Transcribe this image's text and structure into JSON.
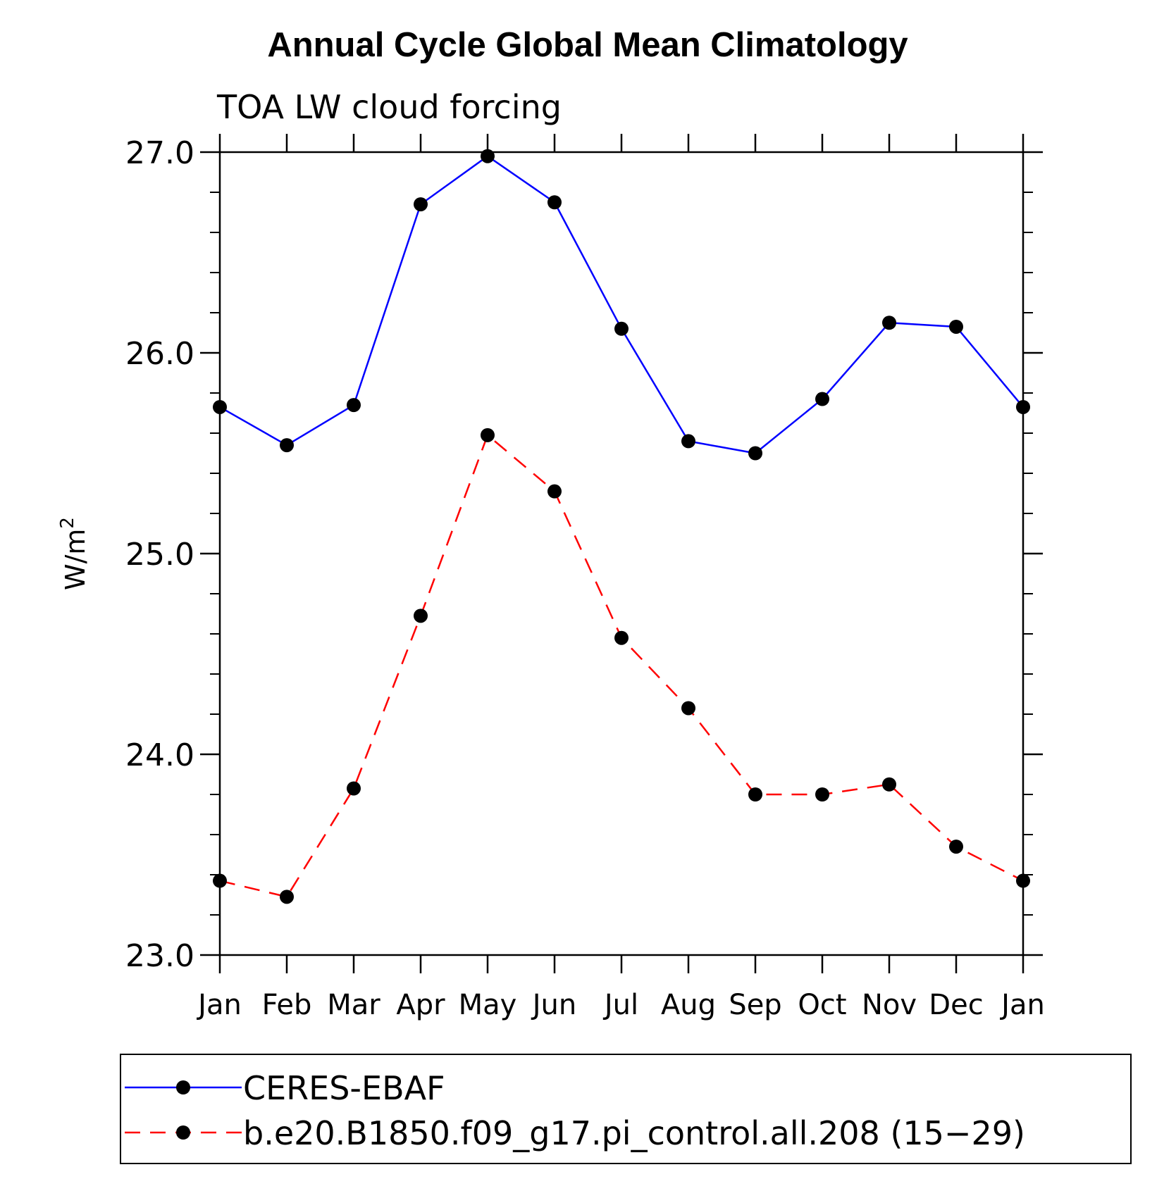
{
  "chart_data": {
    "type": "line",
    "title": "Annual Cycle Global Mean Climatology",
    "subtitle": "TOA LW cloud forcing",
    "ylabel_base": "W/m",
    "ylabel_sup": "2",
    "categories": [
      "Jan",
      "Feb",
      "Mar",
      "Apr",
      "May",
      "Jun",
      "Jul",
      "Aug",
      "Sep",
      "Oct",
      "Nov",
      "Dec",
      "Jan"
    ],
    "ylim": [
      23.0,
      27.0
    ],
    "yticks": [
      "23.0",
      "24.0",
      "25.0",
      "26.0",
      "27.0"
    ],
    "ytick_values": [
      23.0,
      24.0,
      25.0,
      26.0,
      27.0
    ],
    "yminor_step": 0.2,
    "grid": false,
    "legend_position": "bottom",
    "series": [
      {
        "name": "CERES-EBAF",
        "color": "#0000ff",
        "dash": "solid",
        "values": [
          25.73,
          25.54,
          25.74,
          26.74,
          26.98,
          26.75,
          26.12,
          25.56,
          25.5,
          25.77,
          26.15,
          26.13,
          25.73
        ]
      },
      {
        "name": "b.e20.B1850.f09_g17.pi_control.all.208 (15−29)",
        "color": "#ff0000",
        "dash": "dashed",
        "values": [
          23.37,
          23.29,
          23.83,
          24.69,
          25.59,
          25.31,
          24.58,
          24.23,
          23.8,
          23.8,
          23.85,
          23.54,
          23.37
        ]
      }
    ]
  }
}
